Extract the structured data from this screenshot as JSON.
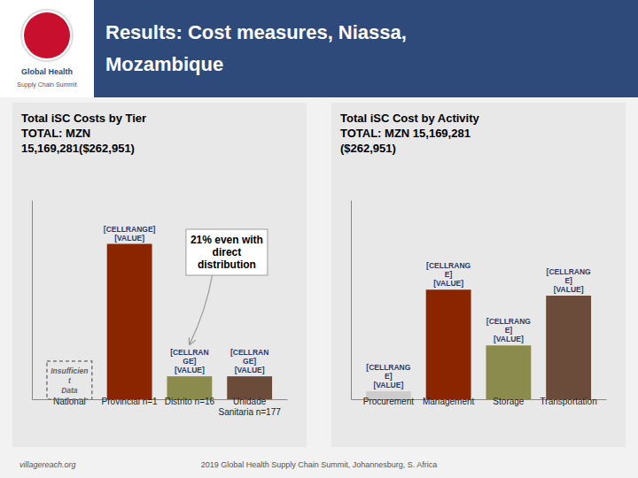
{
  "title": "Results: Cost measures, Niassa,\nMozambique",
  "header": [
    "Global Health",
    "Supply Chain Summit"
  ],
  "footer": [
    "villagereach.org",
    "2019 Global Health Supply Chain Summit, Johannesburg, S. Africa"
  ],
  "chart_data": [
    {
      "type": "bar",
      "title": "Total iSC Costs by Tier\nTOTAL: MZN\n15,169,281($262,951)",
      "categories": [
        "National",
        "Provincial n=1",
        "Distrito n=16",
        "Unidade\nSanitaria n=177"
      ],
      "values": [
        0.0,
        0.78,
        0.115,
        0.115
      ],
      "value_labels": [
        null,
        "[CELLRANGE]\n[VALUE]",
        "[CELLRAN\nGE]\n[VALUE]",
        "[CELLRAN\nGE]\n[VALUE]"
      ],
      "colors": [
        "#cccccc",
        "#8b2500",
        "#8b8b4e",
        "#6b4c3b"
      ],
      "ylim": [
        0,
        1.0
      ],
      "yticks": [],
      "tick_labels": "x",
      "annotations": [
        {
          "text": "Insufficien\nt\nData",
          "category": "National"
        },
        {
          "text": "21% even with\ndirect\ndistribution",
          "category": "Distrito n=16"
        }
      ]
    },
    {
      "type": "bar",
      "title": "Total iSC Cost by Activity\nTOTAL: MZN 15,169,281\n($262,951)",
      "categories": [
        "Procurement",
        "Management",
        "Storage",
        "Transportation"
      ],
      "values": [
        0.04,
        0.55,
        0.27,
        0.52
      ],
      "value_labels": [
        "[CELLRANG\nE]\n[VALUE]",
        "[CELLRANG\nE]\n[VALUE]",
        "[CELLRANG\nE]\n[VALUE]",
        "[CELLRANG\nE]\n[VALUE]"
      ],
      "colors": [
        "#cccccc",
        "#8b2500",
        "#8b8b4e",
        "#6b4c3b"
      ],
      "ylim": [
        0,
        1.0
      ],
      "yticks": [],
      "tick_labels": "x"
    }
  ]
}
